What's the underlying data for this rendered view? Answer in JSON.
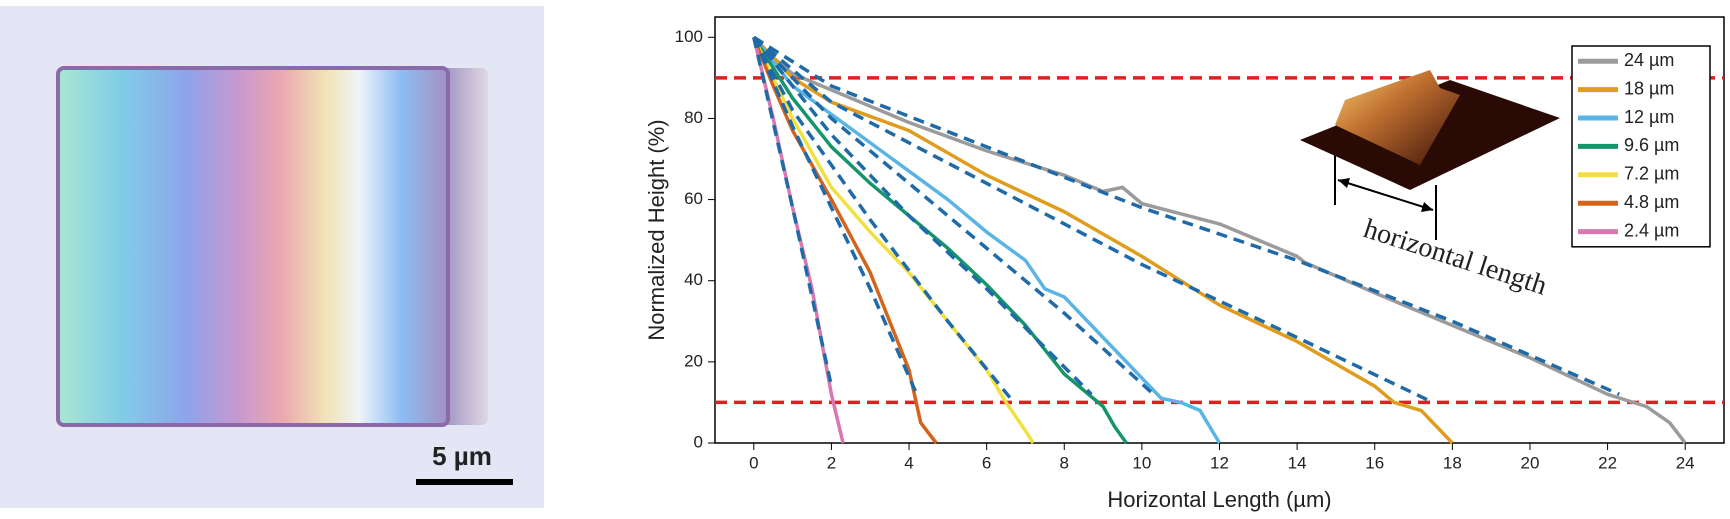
{
  "image_caption": {
    "scale_bar": "5 µm"
  },
  "chart_data": {
    "type": "line",
    "xlabel": "Horizontal Length (µm)",
    "ylabel": "Normalized Height (%)",
    "annotation": "horizontal length",
    "xlim": [
      -1,
      25
    ],
    "ylim": [
      0,
      105
    ],
    "xticks": [
      0,
      2,
      4,
      6,
      8,
      10,
      12,
      14,
      16,
      18,
      20,
      22,
      24
    ],
    "yticks": [
      0,
      20,
      40,
      60,
      80,
      100
    ],
    "legend": "upper right",
    "reference_lines": [
      90,
      10
    ],
    "reference_color": "#e02020",
    "fit_color": "#1f6aa8",
    "series": [
      {
        "name": "24 µm",
        "color": "#9b9b9b",
        "x": [
          0,
          0.5,
          1,
          2,
          4,
          6,
          8,
          9,
          9.5,
          10,
          12,
          14,
          14.2,
          16,
          18,
          20,
          22,
          23,
          23.6,
          24
        ],
        "values": [
          100,
          95,
          91,
          87,
          79,
          72,
          66,
          62,
          63,
          59,
          54,
          46,
          44.5,
          37,
          29,
          21,
          12,
          9,
          5,
          0
        ]
      },
      {
        "name": "18 µm",
        "color": "#e09c1c",
        "x": [
          0,
          1,
          2,
          4,
          6,
          8,
          10,
          12,
          14,
          16,
          16.5,
          17.2,
          18
        ],
        "values": [
          100,
          90,
          84,
          77,
          66,
          57,
          46,
          34,
          25,
          14,
          10,
          8,
          0
        ]
      },
      {
        "name": "12 µm",
        "color": "#5ab4e4",
        "x": [
          0,
          1,
          2,
          3,
          4,
          5,
          6,
          7,
          7.5,
          8,
          9,
          10,
          10.5,
          11,
          11.5,
          12
        ],
        "values": [
          100,
          88,
          81,
          74,
          67,
          60,
          52,
          45,
          38,
          36,
          26,
          16,
          11,
          10,
          8,
          0
        ]
      },
      {
        "name": "9.6 µm",
        "color": "#17956a",
        "x": [
          0,
          1,
          2,
          3,
          4,
          5,
          6,
          7,
          8,
          8.5,
          9,
          9.3,
          9.6
        ],
        "values": [
          100,
          85,
          73,
          64,
          56,
          48,
          39,
          29,
          17,
          13,
          9,
          4,
          0
        ]
      },
      {
        "name": "7.2 µm",
        "color": "#f0e040",
        "x": [
          0,
          0.5,
          1,
          2,
          3,
          4,
          5,
          6,
          6.5,
          7,
          7.2
        ],
        "values": [
          100,
          90,
          80,
          63,
          52,
          42,
          30,
          18,
          10,
          3,
          0
        ]
      },
      {
        "name": "4.8 µm",
        "color": "#d4641c",
        "x": [
          0,
          0.5,
          1,
          2,
          3,
          4,
          4.3,
          4.7
        ],
        "values": [
          100,
          88,
          77,
          60,
          42,
          18,
          5,
          0
        ]
      },
      {
        "name": "2.4 µm",
        "color": "#d878b0",
        "x": [
          0,
          0.5,
          1,
          1.5,
          2,
          2.3
        ],
        "values": [
          100,
          80,
          58,
          38,
          12,
          0
        ]
      }
    ],
    "fits": [
      {
        "x": [
          0,
          2,
          6,
          10,
          14,
          18,
          22.3
        ],
        "values": [
          100,
          88,
          73,
          58,
          45,
          30,
          12
        ]
      },
      {
        "x": [
          0,
          2,
          6,
          10,
          14,
          17.5
        ],
        "values": [
          100,
          84,
          64,
          44,
          26,
          10
        ]
      },
      {
        "x": [
          0,
          2,
          4,
          6,
          8,
          10.3
        ],
        "values": [
          100,
          80,
          64,
          48,
          32,
          12
        ]
      },
      {
        "x": [
          0,
          2,
          4,
          6,
          8.7
        ],
        "values": [
          100,
          76,
          56,
          38,
          12
        ]
      },
      {
        "x": [
          0,
          1,
          3,
          5,
          6.7
        ],
        "values": [
          100,
          82,
          55,
          30,
          10
        ]
      },
      {
        "x": [
          0,
          1,
          2,
          3,
          4.2
        ],
        "values": [
          100,
          78,
          58,
          38,
          12
        ]
      },
      {
        "x": [
          0,
          1,
          2
        ],
        "values": [
          100,
          58,
          14
        ]
      }
    ]
  }
}
